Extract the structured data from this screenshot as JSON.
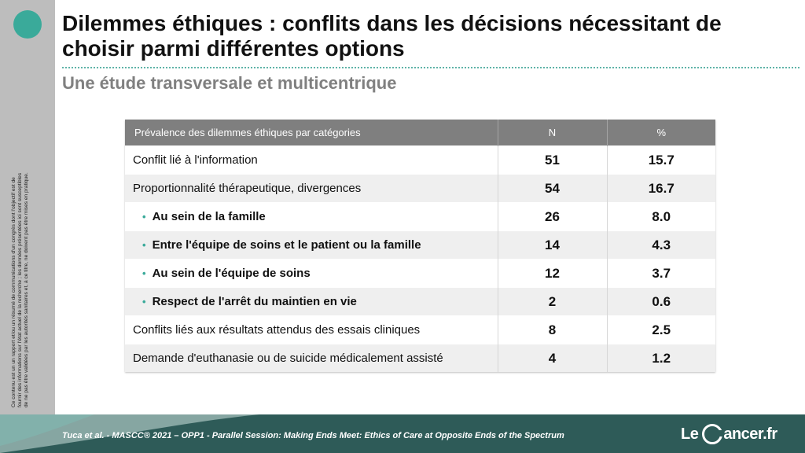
{
  "slide": {
    "title": "Dilemmes éthiques : conflits dans les décisions nécessitant de choisir parmi différentes options",
    "subtitle": "Une étude transversale et multicentrique",
    "disclaimer": "Ce contenu est un un rapport et/ou un résumé de communications d'un congrès dont l'objectif est de fournir des informations sur l'état actuel de la recherche ; les données présentées ici sont susceptibles de ne pas être validées par les autorités sanitaires et, à ce titre, ne doivent pas être mises en pratique."
  },
  "table": {
    "headers": {
      "category": "Prévalence des dilemmes éthiques par catégories",
      "n": "N",
      "pct": "%"
    },
    "rows": [
      {
        "label": "Conflit lié à l'information",
        "n": "51",
        "pct": "15.7"
      },
      {
        "label": "Proportionnalité thérapeutique, divergences",
        "n": "54",
        "pct": "16.7"
      },
      {
        "label": "Au sein de la famille",
        "n": "26",
        "pct": "8.0"
      },
      {
        "label": "Entre l'équipe de soins et le patient ou la famille",
        "n": "14",
        "pct": "4.3"
      },
      {
        "label": "Au sein de l'équipe de soins",
        "n": "12",
        "pct": "3.7"
      },
      {
        "label": "Respect de l'arrêt du maintien en vie",
        "n": "2",
        "pct": "0.6"
      },
      {
        "label": "Conflits liés aux résultats attendus des essais cliniques",
        "n": "8",
        "pct": "2.5"
      },
      {
        "label": "Demande d'euthanasie ou de suicide médicalement assisté",
        "n": "4",
        "pct": "1.2"
      }
    ]
  },
  "footer": {
    "citation": "Tuca et al. - MASCC® 2021 – OPP1 - Parallel Session: Making Ends Meet: Ethics of Care at Opposite Ends of the Spectrum",
    "logo_prefix": "Le",
    "logo_suffix": "ancer.fr"
  },
  "colors": {
    "accent": "#3aaa9a",
    "footer_bg": "#2e5b58",
    "header_bg": "#7f7f7f",
    "sidebar_bg": "#bdbdbd"
  }
}
